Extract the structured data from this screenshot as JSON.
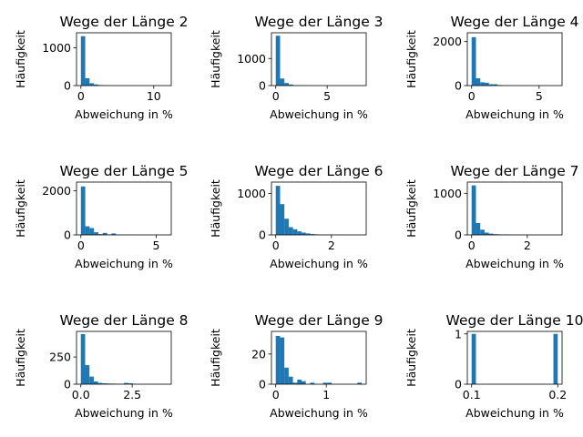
{
  "chart_data": [
    {
      "type": "bar",
      "title": "Wege der Länge 2",
      "xlabel": "Abweichung in %",
      "ylabel": "Häufigkeit",
      "xlim": [
        -0.6,
        12.4
      ],
      "ylim": [
        0,
        1400
      ],
      "xticks": [
        {
          "v": 0,
          "label": "0"
        },
        {
          "v": 10,
          "label": "10"
        }
      ],
      "yticks": [
        {
          "v": 0,
          "label": "0"
        },
        {
          "v": 1000,
          "label": "1000"
        }
      ],
      "bin_start": 0,
      "bin_width": 0.595,
      "values": [
        1310,
        195,
        62,
        30,
        14,
        6,
        4,
        3,
        2,
        1,
        1,
        1,
        1,
        0,
        0,
        0,
        0,
        0,
        0,
        1
      ]
    },
    {
      "type": "bar",
      "title": "Wege der Länge 3",
      "xlabel": "Abweichung in %",
      "ylabel": "Häufigkeit",
      "xlim": [
        -0.42,
        8.8
      ],
      "ylim": [
        0,
        1950
      ],
      "xticks": [
        {
          "v": 0,
          "label": "0"
        },
        {
          "v": 5,
          "label": "5"
        }
      ],
      "yticks": [
        {
          "v": 0,
          "label": "0"
        },
        {
          "v": 1000,
          "label": "1000"
        }
      ],
      "bin_start": 0,
      "bin_width": 0.42,
      "values": [
        1840,
        260,
        95,
        40,
        15,
        8,
        5,
        3,
        2,
        1,
        1,
        0,
        0,
        0,
        0,
        0,
        0,
        0,
        0,
        1
      ]
    },
    {
      "type": "bar",
      "title": "Wege der Länge 4",
      "xlabel": "Abweichung in %",
      "ylabel": "Häufigkeit",
      "xlim": [
        -0.32,
        6.7
      ],
      "ylim": [
        0,
        2400
      ],
      "xticks": [
        {
          "v": 0,
          "label": "0"
        },
        {
          "v": 5,
          "label": "5"
        }
      ],
      "yticks": [
        {
          "v": 0,
          "label": "0"
        },
        {
          "v": 2000,
          "label": "2000"
        }
      ],
      "bin_start": 0,
      "bin_width": 0.32,
      "values": [
        2200,
        330,
        150,
        130,
        60,
        60,
        25,
        10,
        5,
        3,
        2,
        1,
        1,
        0,
        0,
        0,
        0,
        0,
        0,
        1
      ]
    },
    {
      "type": "bar",
      "title": "Wege der Länge 5",
      "xlabel": "Abweichung in %",
      "ylabel": "Häufigkeit",
      "xlim": [
        -0.29,
        6.0
      ],
      "ylim": [
        0,
        2400
      ],
      "xticks": [
        {
          "v": 0,
          "label": "0"
        },
        {
          "v": 5,
          "label": "5"
        }
      ],
      "yticks": [
        {
          "v": 0,
          "label": "0"
        },
        {
          "v": 2000,
          "label": "2000"
        }
      ],
      "bin_start": 0,
      "bin_width": 0.29,
      "values": [
        2200,
        390,
        310,
        120,
        35,
        90,
        20,
        65,
        10,
        5,
        3,
        2,
        1,
        1,
        0,
        0,
        0,
        0,
        0,
        1
      ]
    },
    {
      "type": "bar",
      "title": "Wege der Länge 6",
      "xlabel": "Abweichung in %",
      "ylabel": "Häufigkeit",
      "xlim": [
        -0.155,
        3.25
      ],
      "ylim": [
        0,
        1270
      ],
      "xticks": [
        {
          "v": 0,
          "label": "0"
        },
        {
          "v": 2,
          "label": "2"
        }
      ],
      "yticks": [
        {
          "v": 0,
          "label": "0"
        },
        {
          "v": 1000,
          "label": "1000"
        }
      ],
      "bin_start": 0,
      "bin_width": 0.155,
      "values": [
        1180,
        740,
        390,
        185,
        135,
        85,
        55,
        35,
        20,
        12,
        6,
        4,
        3,
        2,
        1,
        1,
        0,
        0,
        0,
        1
      ]
    },
    {
      "type": "bar",
      "title": "Wege der Länge 7",
      "xlabel": "Abweichung in %",
      "ylabel": "Häufigkeit",
      "xlim": [
        -0.155,
        3.25
      ],
      "ylim": [
        0,
        1270
      ],
      "xticks": [
        {
          "v": 0,
          "label": "0"
        },
        {
          "v": 2,
          "label": "2"
        }
      ],
      "yticks": [
        {
          "v": 0,
          "label": "0"
        },
        {
          "v": 1000,
          "label": "1000"
        }
      ],
      "bin_start": 0,
      "bin_width": 0.155,
      "values": [
        1190,
        285,
        125,
        55,
        30,
        18,
        12,
        9,
        8,
        6,
        4,
        2,
        1,
        1,
        0,
        0,
        0,
        0,
        0,
        1
      ]
    },
    {
      "type": "bar",
      "title": "Wege der Länge 8",
      "xlabel": "Abweichung in %",
      "ylabel": "Häufigkeit",
      "xlim": [
        -0.21,
        4.4
      ],
      "ylim": [
        0,
        485
      ],
      "xticks": [
        {
          "v": 0,
          "label": "0.0"
        },
        {
          "v": 2.5,
          "label": "2.5"
        }
      ],
      "yticks": [
        {
          "v": 0,
          "label": "0"
        },
        {
          "v": 250,
          "label": "250"
        }
      ],
      "bin_start": 0,
      "bin_width": 0.21,
      "values": [
        460,
        175,
        70,
        25,
        12,
        8,
        6,
        5,
        3,
        2,
        12,
        8,
        2,
        1,
        0,
        0,
        0,
        0,
        0,
        1
      ]
    },
    {
      "type": "bar",
      "title": "Wege der Länge 9",
      "xlabel": "Abweichung in %",
      "ylabel": "Häufigkeit",
      "xlim": [
        -0.085,
        1.79
      ],
      "ylim": [
        0,
        35
      ],
      "xticks": [
        {
          "v": 0,
          "label": "0"
        },
        {
          "v": 1,
          "label": "1"
        }
      ],
      "yticks": [
        {
          "v": 0,
          "label": "0"
        },
        {
          "v": 20,
          "label": "20"
        }
      ],
      "bin_start": 0,
      "bin_width": 0.085,
      "values": [
        32,
        31,
        11,
        5,
        1,
        3,
        2,
        0,
        1,
        0,
        0,
        1,
        1,
        0,
        0,
        0,
        0,
        0,
        0,
        1
      ]
    },
    {
      "type": "bar",
      "title": "Wege der Länge 10",
      "xlabel": "Abweichung in %",
      "ylabel": "Häufigkeit",
      "xlim": [
        0.095,
        0.205
      ],
      "ylim": [
        0,
        1.05
      ],
      "xticks": [
        {
          "v": 0.1,
          "label": "0.1"
        },
        {
          "v": 0.2,
          "label": "0.2"
        }
      ],
      "yticks": [
        {
          "v": 0,
          "label": "0"
        },
        {
          "v": 1,
          "label": "1"
        }
      ],
      "bin_start": 0.1,
      "bin_width": 0.005,
      "values": [
        1,
        0,
        0,
        0,
        0,
        0,
        0,
        0,
        0,
        0,
        0,
        0,
        0,
        0,
        0,
        0,
        0,
        0,
        0,
        1
      ]
    }
  ],
  "colors": {
    "bar": "#1f77b4",
    "axes": "#000000"
  }
}
